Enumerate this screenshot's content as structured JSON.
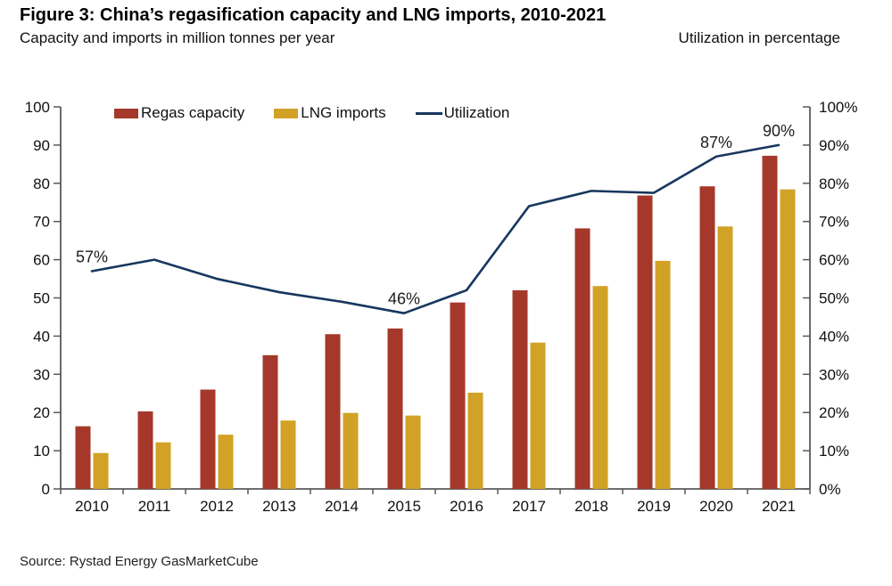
{
  "header": {
    "title": "Figure 3: China’s regasification capacity and LNG imports, 2010-2021",
    "subtitle_left": "Capacity and imports in million tonnes per year",
    "subtitle_right": "Utilization in percentage"
  },
  "chart_data": {
    "type": "bar",
    "subtype": "grouped bars with secondary-axis line",
    "categories": [
      "2010",
      "2011",
      "2012",
      "2013",
      "2014",
      "2015",
      "2016",
      "2017",
      "2018",
      "2019",
      "2020",
      "2021"
    ],
    "series": [
      {
        "name": "Regas capacity",
        "type": "bar",
        "axis": "left",
        "color": "#A5382A",
        "values": [
          16.4,
          20.3,
          26.0,
          35.0,
          40.5,
          42.0,
          48.8,
          52.0,
          68.2,
          76.8,
          79.2,
          87.2
        ]
      },
      {
        "name": "LNG imports",
        "type": "bar",
        "axis": "left",
        "color": "#D2A226",
        "values": [
          9.4,
          12.2,
          14.2,
          17.9,
          19.9,
          19.2,
          25.2,
          38.3,
          53.1,
          59.7,
          68.7,
          78.4
        ]
      },
      {
        "name": "Utilization",
        "type": "line",
        "axis": "right",
        "color": "#17375E",
        "values": [
          57,
          60,
          55,
          51.5,
          49,
          46,
          52,
          74,
          78,
          77.5,
          87,
          90
        ]
      }
    ],
    "left_axis": {
      "min": 0,
      "max": 100,
      "ticks": [
        "0",
        "10",
        "20",
        "30",
        "40",
        "50",
        "60",
        "70",
        "80",
        "90",
        "100"
      ]
    },
    "right_axis": {
      "min": 0,
      "max": 100,
      "ticks": [
        "0%",
        "10%",
        "20%",
        "30%",
        "40%",
        "50%",
        "60%",
        "70%",
        "80%",
        "90%",
        "100%"
      ]
    },
    "annotations": [
      {
        "category": "2010",
        "text": "57%"
      },
      {
        "category": "2015",
        "text": "46%"
      },
      {
        "category": "2020",
        "text": "87%"
      },
      {
        "category": "2021",
        "text": "90%"
      }
    ],
    "legend_position": "top",
    "grid": false,
    "axis_color": "#595959",
    "label_color": "#111111"
  },
  "footer": {
    "source": "Source: Rystad Energy GasMarketCube"
  }
}
